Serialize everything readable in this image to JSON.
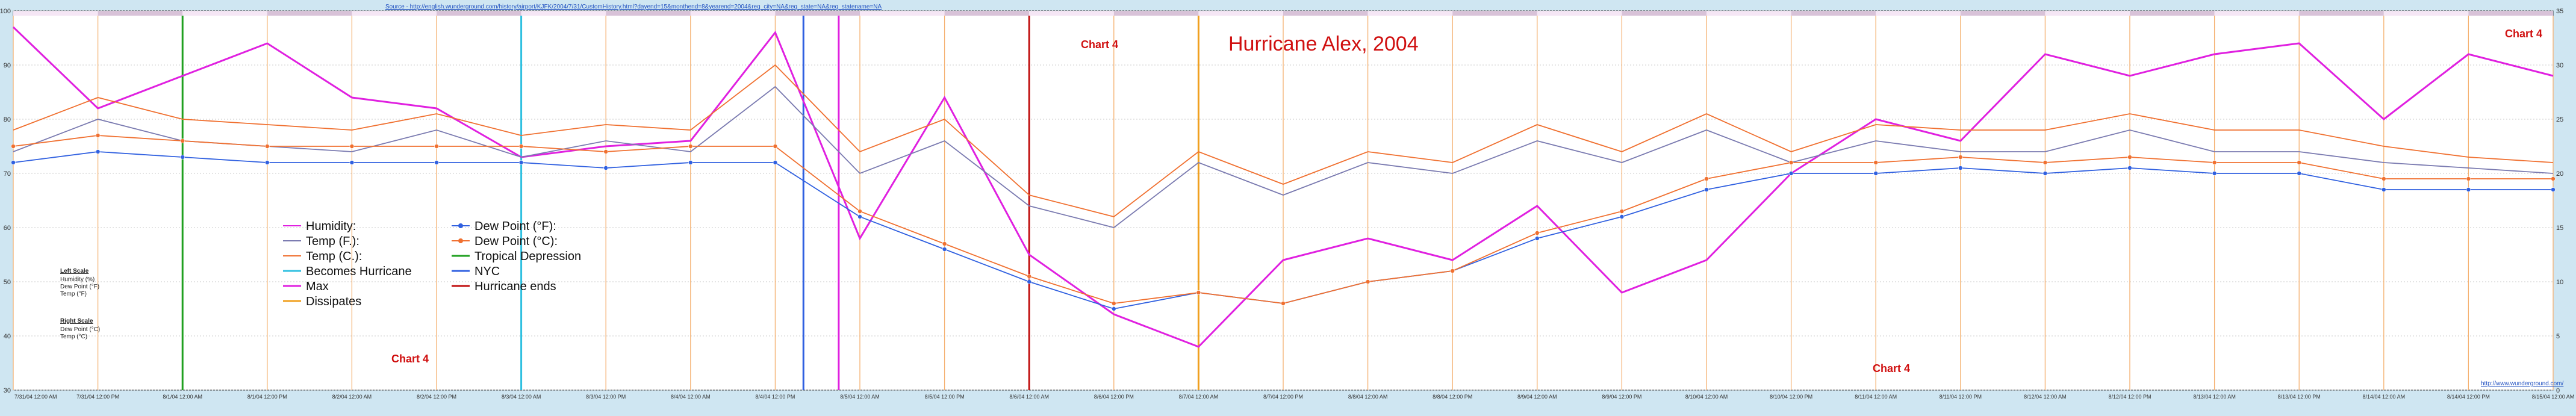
{
  "source_url": "Source - http://english.wunderground.com/history/airport/KJFK/2004/7/31/CustomHistory.html?dayend=15&monthend=8&yearend=2004&req_city=NA&req_state=NA&req_statename=NA",
  "credit": "http://www.wunderground.com/",
  "chart_data": {
    "type": "line",
    "title": "Hurricane Alex, 2004",
    "annotations": [
      "Chart 4",
      "Chart 4",
      "Chart 4",
      "Chart 4"
    ],
    "left_scale_title": "Left Scale",
    "left_scale_items": [
      "Humidity (%)",
      "Dew Point (°F)",
      "Temp (°F)"
    ],
    "right_scale_title": "Right Scale",
    "right_scale_items": [
      "Dew Point (°C)",
      "Temp (°C)"
    ],
    "ylim_left": [
      30,
      100
    ],
    "yticks_left": [
      30,
      40,
      50,
      60,
      70,
      80,
      90,
      100
    ],
    "ylim_right": [
      0,
      35
    ],
    "yticks_right": [
      0,
      5,
      10,
      15,
      20,
      25,
      30,
      35
    ],
    "grid": true,
    "legend_position": "bottom-left",
    "xlim": [
      "7/31/04 12:00 AM",
      "8/15/04 12:00 AM"
    ],
    "x_tick_labels": [
      "7/31/04 12:00 AM",
      "7/31/04 12:00 PM",
      "8/1/04 12:00 AM",
      "8/1/04 12:00 PM",
      "8/2/04 12:00 AM",
      "8/2/04 12:00 PM",
      "8/3/04 12:00 AM",
      "8/3/04 12:00 PM",
      "8/4/04 12:00 AM",
      "8/4/04 12:00 PM",
      "8/5/04 12:00 AM",
      "8/5/04 12:00 PM",
      "8/6/04 12:00 AM",
      "8/6/04 12:00 PM",
      "8/7/04 12:00 AM",
      "8/7/04 12:00 PM",
      "8/8/04 12:00 AM",
      "8/8/04 12:00 PM",
      "8/9/04 12:00 AM",
      "8/9/04 12:00 PM",
      "8/10/04 12:00 AM",
      "8/10/04 12:00 PM",
      "8/11/04 12:00 AM",
      "8/11/04 12:00 PM",
      "8/12/04 12:00 AM",
      "8/12/04 12:00 PM",
      "8/13/04 12:00 AM",
      "8/13/04 12:00 PM",
      "8/14/04 12:00 AM",
      "8/14/04 12:00 PM",
      "8/15/04 12:00 AM"
    ],
    "series": [
      {
        "name": "Humidity:",
        "color": "#e020e0",
        "axis": "left",
        "marker": "none",
        "x": [
          "7/31/04 12:00 AM",
          "7/31/04 12:00 PM",
          "8/1/04 12:00 AM",
          "8/1/04 12:00 PM",
          "8/2/04 12:00 AM",
          "8/2/04 12:00 PM",
          "8/3/04 12:00 AM",
          "8/3/04 12:00 PM",
          "8/4/04 12:00 AM",
          "8/4/04 12:00 PM",
          "8/5/04 12:00 AM",
          "8/5/04 12:00 PM",
          "8/6/04 12:00 AM",
          "8/6/04 12:00 PM",
          "8/7/04 12:00 AM",
          "8/7/04 12:00 PM",
          "8/8/04 12:00 AM",
          "8/8/04 12:00 PM",
          "8/9/04 12:00 AM",
          "8/9/04 12:00 PM",
          "8/10/04 12:00 AM",
          "8/10/04 12:00 PM",
          "8/11/04 12:00 AM",
          "8/11/04 12:00 PM",
          "8/12/04 12:00 AM",
          "8/12/04 12:00 PM",
          "8/13/04 12:00 AM",
          "8/13/04 12:00 PM",
          "8/14/04 12:00 AM",
          "8/14/04 12:00 PM",
          "8/15/04 12:00 AM"
        ],
        "values": [
          97,
          82,
          88,
          94,
          84,
          82,
          73,
          75,
          76,
          96,
          58,
          84,
          55,
          44,
          38,
          54,
          58,
          54,
          64,
          48,
          54,
          70,
          80,
          76,
          92,
          88,
          92,
          94,
          80,
          92,
          88
        ]
      },
      {
        "name": "Temp (F.):",
        "color": "#7a7ab0",
        "axis": "left",
        "marker": "none",
        "x": [
          "7/31/04 12:00 AM",
          "7/31/04 12:00 PM",
          "8/1/04 12:00 AM",
          "8/1/04 12:00 PM",
          "8/2/04 12:00 AM",
          "8/2/04 12:00 PM",
          "8/3/04 12:00 AM",
          "8/3/04 12:00 PM",
          "8/4/04 12:00 AM",
          "8/4/04 12:00 PM",
          "8/5/04 12:00 AM",
          "8/5/04 12:00 PM",
          "8/6/04 12:00 AM",
          "8/6/04 12:00 PM",
          "8/7/04 12:00 AM",
          "8/7/04 12:00 PM",
          "8/8/04 12:00 AM",
          "8/8/04 12:00 PM",
          "8/9/04 12:00 AM",
          "8/9/04 12:00 PM",
          "8/10/04 12:00 AM",
          "8/10/04 12:00 PM",
          "8/11/04 12:00 AM",
          "8/11/04 12:00 PM",
          "8/12/04 12:00 AM",
          "8/12/04 12:00 PM",
          "8/13/04 12:00 AM",
          "8/13/04 12:00 PM",
          "8/14/04 12:00 AM",
          "8/14/04 12:00 PM",
          "8/15/04 12:00 AM"
        ],
        "values": [
          74,
          80,
          76,
          75,
          74,
          78,
          73,
          76,
          74,
          86,
          70,
          76,
          64,
          60,
          72,
          66,
          72,
          70,
          76,
          72,
          78,
          72,
          76,
          74,
          74,
          78,
          74,
          74,
          72,
          71,
          70
        ]
      },
      {
        "name": "Temp (C.):",
        "color": "#f07030",
        "axis": "right",
        "marker": "none",
        "x": [
          "7/31/04 12:00 AM",
          "7/31/04 12:00 PM",
          "8/1/04 12:00 AM",
          "8/1/04 12:00 PM",
          "8/2/04 12:00 AM",
          "8/2/04 12:00 PM",
          "8/3/04 12:00 AM",
          "8/3/04 12:00 PM",
          "8/4/04 12:00 AM",
          "8/4/04 12:00 PM",
          "8/5/04 12:00 AM",
          "8/5/04 12:00 PM",
          "8/6/04 12:00 AM",
          "8/6/04 12:00 PM",
          "8/7/04 12:00 AM",
          "8/7/04 12:00 PM",
          "8/8/04 12:00 AM",
          "8/8/04 12:00 PM",
          "8/9/04 12:00 AM",
          "8/9/04 12:00 PM",
          "8/10/04 12:00 AM",
          "8/10/04 12:00 PM",
          "8/11/04 12:00 AM",
          "8/11/04 12:00 PM",
          "8/12/04 12:00 AM",
          "8/12/04 12:00 PM",
          "8/13/04 12:00 AM",
          "8/13/04 12:00 PM",
          "8/14/04 12:00 AM",
          "8/14/04 12:00 PM",
          "8/15/04 12:00 AM"
        ],
        "values": [
          24,
          27,
          25,
          24.5,
          24,
          25.5,
          23.5,
          24.5,
          24,
          30,
          22,
          25,
          18,
          16,
          22,
          19,
          22,
          21,
          24.5,
          22,
          25.5,
          22,
          24.5,
          24,
          24,
          25.5,
          24,
          24,
          22.5,
          21.5,
          21
        ]
      },
      {
        "name": "Dew Point (°F):",
        "color": "#3060e0",
        "axis": "left",
        "marker": "circle",
        "x": [
          "7/31/04 12:00 AM",
          "7/31/04 12:00 PM",
          "8/1/04 12:00 AM",
          "8/1/04 12:00 PM",
          "8/2/04 12:00 AM",
          "8/2/04 12:00 PM",
          "8/3/04 12:00 AM",
          "8/3/04 12:00 PM",
          "8/4/04 12:00 AM",
          "8/4/04 12:00 PM",
          "8/5/04 12:00 AM",
          "8/5/04 12:00 PM",
          "8/6/04 12:00 AM",
          "8/6/04 12:00 PM",
          "8/7/04 12:00 AM",
          "8/7/04 12:00 PM",
          "8/8/04 12:00 AM",
          "8/8/04 12:00 PM",
          "8/9/04 12:00 AM",
          "8/9/04 12:00 PM",
          "8/10/04 12:00 AM",
          "8/10/04 12:00 PM",
          "8/11/04 12:00 AM",
          "8/11/04 12:00 PM",
          "8/12/04 12:00 AM",
          "8/12/04 12:00 PM",
          "8/13/04 12:00 AM",
          "8/13/04 12:00 PM",
          "8/14/04 12:00 AM",
          "8/14/04 12:00 PM",
          "8/15/04 12:00 AM"
        ],
        "values": [
          72,
          74,
          73,
          72,
          72,
          72,
          72,
          71,
          72,
          72,
          62,
          56,
          50,
          45,
          48,
          46,
          50,
          52,
          58,
          62,
          67,
          70,
          70,
          71,
          70,
          71,
          70,
          70,
          67,
          67,
          67
        ]
      },
      {
        "name": "Dew Point (°C):",
        "color": "#f07030",
        "axis": "right",
        "marker": "circle",
        "x": [
          "7/31/04 12:00 AM",
          "7/31/04 12:00 PM",
          "8/1/04 12:00 AM",
          "8/1/04 12:00 PM",
          "8/2/04 12:00 AM",
          "8/2/04 12:00 PM",
          "8/3/04 12:00 AM",
          "8/3/04 12:00 PM",
          "8/4/04 12:00 AM",
          "8/4/04 12:00 PM",
          "8/5/04 12:00 AM",
          "8/5/04 12:00 PM",
          "8/6/04 12:00 AM",
          "8/6/04 12:00 PM",
          "8/7/04 12:00 AM",
          "8/7/04 12:00 PM",
          "8/8/04 12:00 AM",
          "8/8/04 12:00 PM",
          "8/9/04 12:00 AM",
          "8/9/04 12:00 PM",
          "8/10/04 12:00 AM",
          "8/10/04 12:00 PM",
          "8/11/04 12:00 AM",
          "8/11/04 12:00 PM",
          "8/12/04 12:00 AM",
          "8/12/04 12:00 PM",
          "8/13/04 12:00 AM",
          "8/13/04 12:00 PM",
          "8/14/04 12:00 AM",
          "8/14/04 12:00 PM",
          "8/15/04 12:00 AM"
        ],
        "values": [
          22.5,
          23.5,
          23,
          22.5,
          22.5,
          22.5,
          22.5,
          22,
          22.5,
          22.5,
          16.5,
          13.5,
          10.5,
          8,
          9,
          8,
          10,
          11,
          14.5,
          16.5,
          19.5,
          21,
          21,
          21.5,
          21,
          21.5,
          21,
          21,
          19.5,
          19.5,
          19.5
        ]
      }
    ],
    "markers": [
      {
        "name": "Tropical Depression",
        "color": "#20a020",
        "x": "8/1/04 12:00 AM"
      },
      {
        "name": "Becomes Hurricane",
        "color": "#30c0e0",
        "x": "8/3/04 12:00 AM"
      },
      {
        "name": "Max",
        "color": "#e020e0",
        "x": "8/4/04 9:00 PM"
      },
      {
        "name": "NYC",
        "color": "#3060e0",
        "x": "8/4/04 4:00 PM"
      },
      {
        "name": "Hurricane ends",
        "color": "#c01010",
        "x": "8/6/04 12:00 AM"
      },
      {
        "name": "Dissipates",
        "color": "#f0a020",
        "x": "8/7/04 12:00 AM"
      }
    ]
  }
}
